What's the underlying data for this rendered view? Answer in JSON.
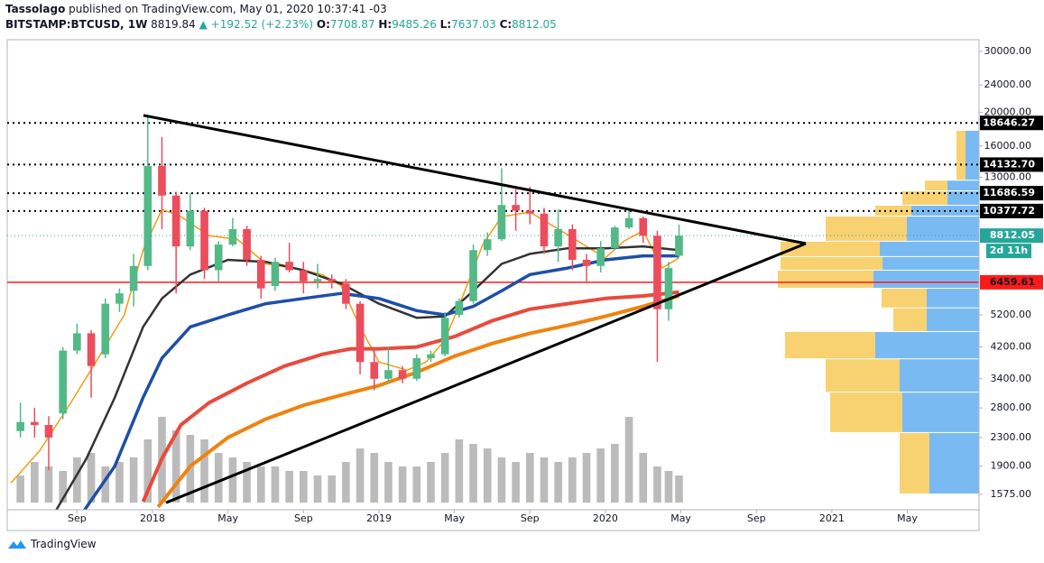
{
  "header": {
    "author": "Tassolago",
    "published": "published on TradingView.com, May 01, 2020 10:37:41 -03",
    "symbol": "BITSTAMP:BTCUSD, 1W",
    "price": "8819.84",
    "arrow": "▲",
    "change": "+192.52 (+2.23%)",
    "o_label": "O:",
    "o": "7708.87",
    "h_label": "H:",
    "h": "9485.26",
    "l_label": "L:",
    "l": "7637.03",
    "c_label": "C:",
    "c": "8812.05"
  },
  "chart_data": {
    "type": "candlestick",
    "log_scale": true,
    "xlim": [
      4.3,
      55.8
    ],
    "ylim": [
      1422,
      32440
    ],
    "xticks": [
      {
        "value": 8,
        "label": "Sep"
      },
      {
        "value": 12,
        "label": "2018"
      },
      {
        "value": 16,
        "label": "May"
      },
      {
        "value": 20,
        "label": "Sep"
      },
      {
        "value": 24,
        "label": "2019"
      },
      {
        "value": 28,
        "label": "May"
      },
      {
        "value": 32,
        "label": "Sep"
      },
      {
        "value": 36,
        "label": "2020"
      },
      {
        "value": 40,
        "label": "May"
      },
      {
        "value": 44,
        "label": "Sep"
      },
      {
        "value": 48,
        "label": "2021"
      },
      {
        "value": 52,
        "label": "May"
      }
    ],
    "yticks": [
      {
        "value": 30000,
        "label": "30000.00"
      },
      {
        "value": 24000,
        "label": "24000.00"
      },
      {
        "value": 20000,
        "label": "20000.00"
      },
      {
        "value": 16000,
        "label": "16000.00"
      },
      {
        "value": 13000,
        "label": "13000.00"
      },
      {
        "value": 5200,
        "label": "5200.00"
      },
      {
        "value": 4200,
        "label": "4200.00"
      },
      {
        "value": 3400,
        "label": "3400.00"
      },
      {
        "value": 2800,
        "label": "2800.00"
      },
      {
        "value": 2300,
        "label": "2300.00"
      },
      {
        "value": 1900,
        "label": "1900.00"
      },
      {
        "value": 1575,
        "label": "1575.00"
      }
    ],
    "up_color": "#53b987",
    "down_color": "#eb4d5c",
    "volume_color": "#9e9e9e",
    "candles": {
      "x": [
        5.0,
        5.75,
        6.5,
        7.25,
        8.0,
        8.75,
        9.5,
        10.25,
        11.0,
        11.75,
        12.5,
        13.25,
        14.0,
        14.75,
        15.5,
        16.25,
        17.0,
        17.75,
        18.5,
        19.25,
        20.0,
        20.75,
        21.5,
        22.25,
        23.0,
        23.75,
        24.5,
        25.25,
        26.0,
        26.75,
        27.5,
        28.25,
        29.0,
        29.75,
        30.5,
        31.25,
        32.0,
        32.75,
        33.5,
        34.25,
        35.0,
        35.75,
        36.5,
        37.25,
        38.0,
        38.75,
        39.35,
        39.9
      ],
      "open": [
        2400,
        2550,
        2500,
        2700,
        4100,
        4600,
        4000,
        5600,
        6100,
        7200,
        14000,
        11500,
        8200,
        10400,
        7000,
        8300,
        9200,
        7500,
        6300,
        7400,
        7000,
        6500,
        6600,
        6400,
        5600,
        3800,
        3400,
        3600,
        3400,
        3900,
        4000,
        5200,
        5700,
        8000,
        8600,
        10800,
        10400,
        10200,
        8200,
        9200,
        7500,
        7200,
        8100,
        9300,
        9900,
        8800,
        5400,
        7708.87
      ],
      "high": [
        2900,
        2800,
        2650,
        4200,
        4900,
        4700,
        5800,
        6200,
        7800,
        19600,
        17000,
        11800,
        11700,
        10600,
        8500,
        9900,
        9400,
        7700,
        7600,
        8400,
        7400,
        7300,
        6800,
        6600,
        5700,
        4200,
        4200,
        3700,
        4000,
        4100,
        5300,
        5800,
        8300,
        9000,
        13800,
        12000,
        12200,
        10600,
        10500,
        9500,
        7800,
        8500,
        9400,
        10500,
        10000,
        9100,
        7400,
        9485.26
      ],
      "low": [
        2300,
        2300,
        1850,
        2600,
        4000,
        3000,
        3900,
        5300,
        5500,
        7000,
        9200,
        6000,
        8000,
        6600,
        6500,
        8200,
        7200,
        5800,
        6100,
        6900,
        6000,
        6200,
        6200,
        5400,
        3500,
        3150,
        3300,
        3300,
        3350,
        3800,
        3950,
        5100,
        5600,
        7700,
        8500,
        9100,
        9500,
        7800,
        7400,
        7000,
        6500,
        6900,
        8000,
        9200,
        8400,
        3800,
        5000,
        7637.03
      ],
      "close": [
        2550,
        2500,
        2300,
        4100,
        4600,
        3700,
        5600,
        6000,
        7200,
        14000,
        11500,
        8200,
        10400,
        7000,
        8300,
        9200,
        7500,
        6200,
        7400,
        7000,
        6500,
        6600,
        6500,
        5600,
        3800,
        3400,
        3600,
        3400,
        3900,
        4000,
        5100,
        5700,
        8000,
        8600,
        10800,
        10400,
        10200,
        8200,
        9200,
        7500,
        7200,
        8100,
        9300,
        9900,
        8800,
        5400,
        7100,
        8812.05
      ],
      "volume": [
        30,
        45,
        40,
        35,
        50,
        55,
        40,
        45,
        50,
        70,
        95,
        80,
        75,
        70,
        55,
        50,
        45,
        40,
        40,
        35,
        35,
        30,
        30,
        45,
        60,
        55,
        45,
        40,
        40,
        45,
        55,
        70,
        65,
        60,
        50,
        45,
        55,
        50,
        45,
        50,
        55,
        60,
        65,
        95,
        55,
        40,
        35,
        30
      ]
    },
    "lines": [
      {
        "color": "#f39c12",
        "width": 1.5,
        "x": [
          4.5,
          6,
          7.5,
          9,
          10.5,
          11.5,
          12.5,
          13.5,
          15,
          16.5,
          18,
          19.5,
          21,
          22,
          23,
          24,
          25.5,
          26.5,
          27.5,
          28.5,
          29.5,
          30.5,
          32,
          33.5,
          35,
          36,
          37,
          38,
          39,
          39.9
        ],
        "values": [
          1700,
          2100,
          2800,
          3800,
          5200,
          8000,
          10500,
          10000,
          8800,
          8600,
          7300,
          7100,
          6800,
          6300,
          4800,
          3800,
          3600,
          3800,
          4400,
          6000,
          8300,
          10000,
          10300,
          9200,
          8200,
          7600,
          8500,
          9100,
          7100,
          7600
        ]
      },
      {
        "color": "#333333",
        "width": 2.5,
        "x": [
          6.9,
          8.5,
          10,
          11.5,
          12.5,
          14,
          16,
          18,
          20,
          22,
          24,
          26,
          27.5,
          29,
          30.5,
          32,
          34,
          36,
          38,
          39.9
        ],
        "values": [
          1420,
          2000,
          3000,
          4800,
          5800,
          6800,
          7500,
          7400,
          7000,
          6400,
          5600,
          5100,
          5150,
          6100,
          7300,
          7800,
          8100,
          8100,
          8200,
          8000
        ]
      },
      {
        "color": "#1e4fa8",
        "width": 3.5,
        "x": [
          8.4,
          10,
          11.5,
          12.5,
          14,
          16,
          18,
          20,
          22,
          24,
          26,
          27.5,
          29,
          30.5,
          32,
          34,
          36,
          38,
          39.9
        ],
        "values": [
          1420,
          1900,
          3000,
          3900,
          4800,
          5200,
          5600,
          5800,
          6000,
          5800,
          5350,
          5200,
          5500,
          6100,
          6800,
          7100,
          7500,
          7700,
          7700
        ]
      },
      {
        "color": "#e84a3c",
        "width": 4,
        "x": [
          11.5,
          12.5,
          13.5,
          15,
          17,
          19,
          21,
          22.5,
          24,
          26,
          28,
          30,
          32,
          34,
          36,
          38,
          39.9
        ],
        "values": [
          1500,
          2000,
          2500,
          2900,
          3300,
          3700,
          4000,
          4150,
          4150,
          4200,
          4500,
          5000,
          5400,
          5600,
          5800,
          5900,
          6050
        ]
      },
      {
        "color": "#f0820f",
        "width": 4,
        "x": [
          12.3,
          14,
          16,
          18,
          20,
          22,
          24,
          26,
          28,
          30,
          32,
          34,
          36,
          38,
          39.9
        ],
        "values": [
          1450,
          1900,
          2300,
          2600,
          2850,
          3050,
          3250,
          3550,
          3950,
          4300,
          4600,
          4850,
          5150,
          5500,
          5900
        ]
      }
    ],
    "trendlines": [
      {
        "color": "#000000",
        "x": [
          11.52,
          46.62
        ],
        "values": [
          19600,
          8360
        ]
      },
      {
        "color": "#000000",
        "x": [
          12.71,
          46.62
        ],
        "values": [
          1490,
          8360
        ]
      }
    ],
    "levels": [
      {
        "value": 18646.27,
        "color": "#000000",
        "style": "dotted"
      },
      {
        "value": 14132.7,
        "label": "14132.70",
        "color": "#000000",
        "style": "dotted"
      },
      {
        "value": 11686.59,
        "color": "#000000",
        "style": "dotted"
      },
      {
        "value": 10377.72,
        "color": "#000000",
        "style": "dotted"
      },
      {
        "value": 6459.61,
        "color": "#ff1a1a",
        "style": "solid"
      }
    ],
    "last_price": 8812.05,
    "last_color": "#26a69a",
    "countdown": "2d 11h",
    "volume_profile": {
      "bins": [
        1575,
        2370,
        3100,
        3870,
        4640,
        5430,
        6190,
        6980,
        7640,
        8460,
        10000,
        10750,
        11830,
        12700,
        17700
      ],
      "up": [
        33,
        80,
        82,
        100,
        37,
        50,
        106,
        113,
        110,
        90,
        40,
        50,
        25,
        10
      ],
      "down": [
        55,
        85,
        88,
        115,
        58,
        58,
        117,
        107,
        110,
        80,
        75,
        35,
        35,
        15
      ],
      "up_color": "#f5c242",
      "down_color": "#4da3ef"
    }
  },
  "footer": {
    "brand": "TradingView"
  }
}
